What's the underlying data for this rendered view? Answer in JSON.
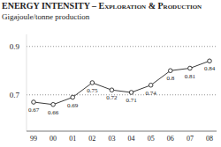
{
  "chart_data": {
    "type": "line",
    "title": "ENERGY INTENSITY – Exploration & Production",
    "subtitle": "Gigajoule/tonne production",
    "categories": [
      "99",
      "00",
      "01",
      "02",
      "03",
      "04",
      "05",
      "06",
      "07",
      "08"
    ],
    "values": [
      0.67,
      0.66,
      0.69,
      0.75,
      0.72,
      0.71,
      0.74,
      0.8,
      0.81,
      0.84
    ],
    "color": "#3a3a3a",
    "marker": "circle",
    "ylim": [
      0.55,
      0.95
    ],
    "yticks": [
      0.7,
      0.9
    ],
    "grid": true,
    "data_labels": true
  }
}
